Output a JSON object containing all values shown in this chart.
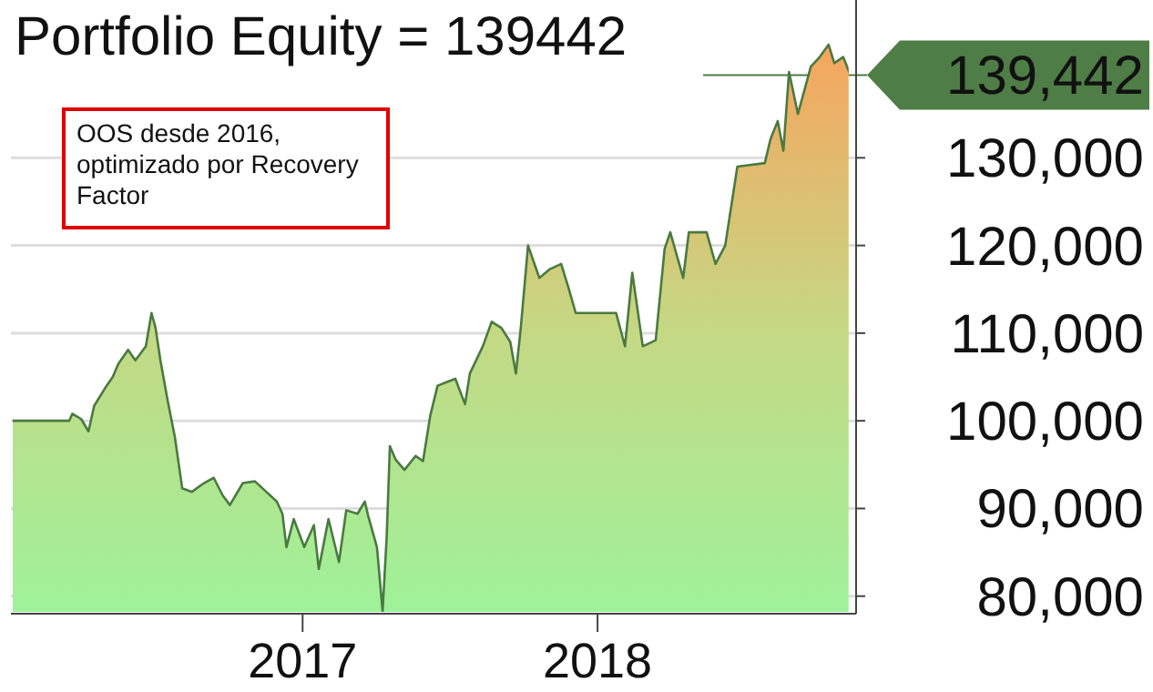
{
  "chart_data": {
    "type": "area",
    "title": "Portfolio Equity = 139442",
    "annotations": [
      "OOS desde 2016, optimizado por Recovery Factor"
    ],
    "x": [
      "2016-01-06",
      "2016-03-18",
      "2016-03-22",
      "2016-04-02",
      "2016-04-11",
      "2016-04-18",
      "2016-05-02",
      "2016-05-11",
      "2016-05-18",
      "2016-05-30",
      "2016-06-08",
      "2016-06-21",
      "2016-06-28",
      "2016-07-03",
      "2016-07-09",
      "2016-07-18",
      "2016-07-27",
      "2016-08-05",
      "2016-08-17",
      "2016-09-01",
      "2016-09-13",
      "2016-09-24",
      "2016-10-03",
      "2016-10-19",
      "2016-11-03",
      "2016-11-17",
      "2016-11-30",
      "2016-12-07",
      "2016-12-12",
      "2016-12-21",
      "2017-01-03",
      "2017-01-15",
      "2017-01-21",
      "2017-02-02",
      "2017-02-15",
      "2017-02-24",
      "2017-03-10",
      "2017-03-19",
      "2017-03-23",
      "2017-04-03",
      "2017-04-10",
      "2017-04-15",
      "2017-04-19",
      "2017-04-26",
      "2017-05-07",
      "2017-05-21",
      "2017-05-30",
      "2017-06-08",
      "2017-06-17",
      "2017-06-28",
      "2017-07-09",
      "2017-07-21",
      "2017-07-27",
      "2017-08-12",
      "2017-08-23",
      "2017-09-04",
      "2017-09-15",
      "2017-09-22",
      "2017-09-28",
      "2017-10-07",
      "2017-10-21",
      "2017-11-03",
      "2017-11-17",
      "2017-11-26",
      "2017-12-05",
      "2018-01-05",
      "2018-01-24",
      "2018-02-04",
      "2018-02-13",
      "2018-02-26",
      "2018-03-14",
      "2018-03-25",
      "2018-04-01",
      "2018-04-17",
      "2018-04-24",
      "2018-05-16",
      "2018-05-27",
      "2018-06-08",
      "2018-06-23",
      "2018-07-27",
      "2018-08-03",
      "2018-08-12",
      "2018-08-19",
      "2018-08-26",
      "2018-09-06",
      "2018-09-22",
      "2018-10-03",
      "2018-10-14",
      "2018-10-21",
      "2018-11-01",
      "2018-11-10"
    ],
    "series": [
      {
        "color": "#4a7a40",
        "values": [
          100000,
          100000,
          100800,
          100200,
          98800,
          101700,
          103800,
          105000,
          106500,
          108100,
          106900,
          108500,
          112300,
          110600,
          106900,
          102300,
          98100,
          92300,
          91900,
          92900,
          93500,
          91500,
          90400,
          92900,
          93100,
          91900,
          90800,
          89400,
          85600,
          88800,
          85600,
          88100,
          83100,
          88800,
          83900,
          89800,
          89400,
          90800,
          89200,
          85600,
          78300,
          86700,
          97100,
          95600,
          94400,
          96000,
          95400,
          100600,
          104000,
          104400,
          104800,
          101900,
          105400,
          108500,
          111300,
          110600,
          109000,
          105400,
          110600,
          120000,
          116300,
          117300,
          117900,
          115200,
          112300,
          112300,
          112300,
          108500,
          116900,
          108500,
          109200,
          119600,
          121500,
          116300,
          121500,
          121500,
          117900,
          120000,
          129000,
          129400,
          132100,
          134200,
          130800,
          139800,
          135000,
          140400,
          141500,
          142900,
          140800,
          141500,
          139442
        ]
      }
    ],
    "xlim": [
      "2016-01-06",
      "2018-11-17"
    ],
    "xticks": [
      {
        "value": "2017-01-01",
        "label": "2017"
      },
      {
        "value": "2018-01-01",
        "label": "2018"
      }
    ],
    "ylim": [
      78000,
      148000
    ],
    "yticks": [
      {
        "value": 80000,
        "label": "80,000"
      },
      {
        "value": 90000,
        "label": "90,000"
      },
      {
        "value": 100000,
        "label": "100,000"
      },
      {
        "value": 110000,
        "label": "110,000"
      },
      {
        "value": 120000,
        "label": "120,000"
      },
      {
        "value": 130000,
        "label": "130,000"
      }
    ],
    "grid": "y",
    "ref_lines": [
      {
        "axis": "y",
        "value": 139442,
        "label": "139,442",
        "color": "#4e7d45"
      }
    ]
  }
}
